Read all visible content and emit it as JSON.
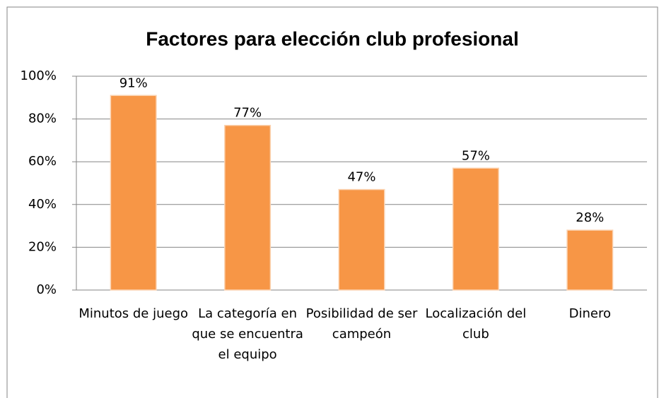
{
  "chart_data": {
    "type": "bar",
    "title": "Factores para elección club profesional",
    "categories": [
      "Minutos de juego",
      "La categoría en que se encuentra el equipo",
      "Posibilidad de ser campeón",
      "Localización del club",
      "Dinero"
    ],
    "values": [
      91,
      77,
      47,
      57,
      28
    ],
    "value_labels": [
      "91%",
      "77%",
      "47%",
      "57%",
      "28%"
    ],
    "color": "#f79646",
    "ylim": [
      0,
      100
    ],
    "yticks": [
      {
        "value": 0,
        "label": "0%"
      },
      {
        "value": 20,
        "label": "20%"
      },
      {
        "value": 40,
        "label": "40%"
      },
      {
        "value": 60,
        "label": "60%"
      },
      {
        "value": 80,
        "label": "80%"
      },
      {
        "value": 100,
        "label": "100%"
      }
    ],
    "grid": true
  }
}
